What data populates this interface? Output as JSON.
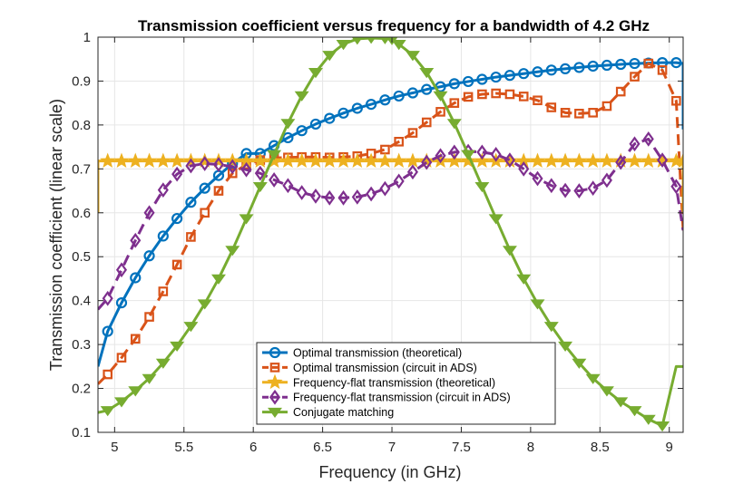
{
  "chart_data": {
    "type": "line",
    "title": "Transmission coefficient versus frequency for a bandwidth of 4.2 GHz",
    "xlabel": "Frequency (in GHz)",
    "ylabel": "Transmission coefficient (linear scale)",
    "xlim": [
      4.88,
      9.1
    ],
    "ylim": [
      0.1,
      1.0
    ],
    "xticks": [
      "5",
      "5.5",
      "6",
      "6.5",
      "7",
      "7.5",
      "8",
      "8.5",
      "9"
    ],
    "xtick_values": [
      5,
      5.5,
      6,
      6.5,
      7,
      7.5,
      8,
      8.5,
      9
    ],
    "yticks": [
      "0.1",
      "0.2",
      "0.3",
      "0.4",
      "0.5",
      "0.6",
      "0.7",
      "0.8",
      "0.9",
      "1"
    ],
    "ytick_values": [
      0.1,
      0.2,
      0.3,
      0.4,
      0.5,
      0.6,
      0.7,
      0.8,
      0.9,
      1.0
    ],
    "grid": true,
    "legend_position": "bottom-center",
    "series": [
      {
        "name": "Optimal transmission (theoretical)",
        "color": "#0072BD",
        "dash": "solid",
        "marker": "circle",
        "x": [
          4.88,
          4.95,
          5.05,
          5.15,
          5.25,
          5.35,
          5.45,
          5.55,
          5.65,
          5.75,
          5.85,
          5.95,
          6.05,
          6.15,
          6.25,
          6.35,
          6.45,
          6.55,
          6.65,
          6.75,
          6.85,
          6.95,
          7.05,
          7.15,
          7.25,
          7.35,
          7.45,
          7.55,
          7.65,
          7.75,
          7.85,
          7.95,
          8.05,
          8.15,
          8.25,
          8.35,
          8.45,
          8.55,
          8.65,
          8.75,
          8.85,
          8.95,
          9.05,
          9.1,
          9.1
        ],
        "y": [
          0.25,
          0.33,
          0.395,
          0.452,
          0.502,
          0.547,
          0.587,
          0.624,
          0.656,
          0.685,
          0.712,
          0.735,
          0.735,
          0.753,
          0.771,
          0.787,
          0.802,
          0.815,
          0.827,
          0.838,
          0.847,
          0.857,
          0.866,
          0.873,
          0.881,
          0.887,
          0.894,
          0.899,
          0.904,
          0.909,
          0.913,
          0.917,
          0.921,
          0.925,
          0.928,
          0.931,
          0.934,
          0.936,
          0.938,
          0.94,
          0.941,
          0.942,
          0.942,
          0.94,
          0.79
        ]
      },
      {
        "name": "Optimal transmission (circuit in ADS)",
        "color": "#D95319",
        "dash": "dashed",
        "marker": "square",
        "x": [
          4.88,
          4.95,
          5.05,
          5.15,
          5.25,
          5.35,
          5.45,
          5.55,
          5.65,
          5.75,
          5.85,
          5.95,
          6.05,
          6.15,
          6.25,
          6.35,
          6.45,
          6.55,
          6.65,
          6.75,
          6.85,
          6.95,
          7.05,
          7.15,
          7.25,
          7.35,
          7.45,
          7.55,
          7.65,
          7.75,
          7.85,
          7.95,
          8.05,
          8.15,
          8.25,
          8.35,
          8.45,
          8.55,
          8.65,
          8.75,
          8.85,
          8.95,
          9.05,
          9.1
        ],
        "y": [
          0.21,
          0.232,
          0.27,
          0.313,
          0.363,
          0.421,
          0.482,
          0.545,
          0.6,
          0.65,
          0.69,
          0.71,
          0.72,
          0.725,
          0.726,
          0.727,
          0.727,
          0.726,
          0.727,
          0.729,
          0.735,
          0.744,
          0.762,
          0.782,
          0.806,
          0.83,
          0.85,
          0.864,
          0.87,
          0.872,
          0.87,
          0.865,
          0.856,
          0.84,
          0.828,
          0.826,
          0.828,
          0.843,
          0.876,
          0.91,
          0.94,
          0.925,
          0.855,
          0.56
        ]
      },
      {
        "name": "Frequency-flat transmission (theoretical)",
        "color": "#EDB120",
        "dash": "solid",
        "marker": "star",
        "x": [
          4.88,
          4.88,
          4.95,
          5.05,
          5.15,
          5.25,
          5.35,
          5.45,
          5.55,
          5.65,
          5.75,
          5.85,
          5.95,
          6.05,
          6.15,
          6.25,
          6.35,
          6.45,
          6.55,
          6.65,
          6.75,
          6.85,
          6.95,
          7.05,
          7.15,
          7.25,
          7.35,
          7.45,
          7.55,
          7.65,
          7.75,
          7.85,
          7.95,
          8.05,
          8.15,
          8.25,
          8.35,
          8.45,
          8.55,
          8.65,
          8.75,
          8.85,
          8.95,
          9.05,
          9.1,
          9.1
        ],
        "y": [
          0.6,
          0.718,
          0.718,
          0.718,
          0.718,
          0.718,
          0.718,
          0.718,
          0.718,
          0.718,
          0.718,
          0.718,
          0.718,
          0.718,
          0.718,
          0.718,
          0.718,
          0.718,
          0.718,
          0.718,
          0.718,
          0.718,
          0.718,
          0.718,
          0.718,
          0.718,
          0.718,
          0.718,
          0.718,
          0.718,
          0.718,
          0.718,
          0.718,
          0.718,
          0.718,
          0.718,
          0.718,
          0.718,
          0.718,
          0.718,
          0.718,
          0.718,
          0.718,
          0.718,
          0.718,
          0.6
        ]
      },
      {
        "name": "Frequency-flat transmission (circuit in ADS)",
        "color": "#7E2F8E",
        "dash": "dashed",
        "marker": "diamond",
        "x": [
          4.88,
          4.95,
          5.05,
          5.15,
          5.25,
          5.35,
          5.45,
          5.55,
          5.65,
          5.75,
          5.85,
          5.95,
          6.05,
          6.15,
          6.25,
          6.35,
          6.45,
          6.55,
          6.65,
          6.75,
          6.85,
          6.95,
          7.05,
          7.15,
          7.25,
          7.35,
          7.45,
          7.55,
          7.65,
          7.75,
          7.85,
          7.95,
          8.05,
          8.15,
          8.25,
          8.35,
          8.45,
          8.55,
          8.65,
          8.75,
          8.85,
          8.95,
          9.05,
          9.1
        ],
        "y": [
          0.38,
          0.405,
          0.47,
          0.537,
          0.6,
          0.652,
          0.688,
          0.707,
          0.712,
          0.71,
          0.705,
          0.698,
          0.69,
          0.675,
          0.662,
          0.646,
          0.638,
          0.634,
          0.634,
          0.636,
          0.643,
          0.655,
          0.672,
          0.693,
          0.715,
          0.73,
          0.738,
          0.74,
          0.738,
          0.733,
          0.72,
          0.7,
          0.678,
          0.662,
          0.651,
          0.65,
          0.656,
          0.674,
          0.715,
          0.757,
          0.768,
          0.72,
          0.66,
          0.56
        ]
      },
      {
        "name": "Conjugate matching",
        "color": "#77AC30",
        "dash": "solid",
        "marker": "triangle-down",
        "x": [
          4.88,
          4.95,
          5.05,
          5.15,
          5.25,
          5.35,
          5.45,
          5.55,
          5.65,
          5.75,
          5.85,
          5.95,
          6.05,
          6.15,
          6.25,
          6.35,
          6.45,
          6.55,
          6.65,
          6.75,
          6.85,
          6.95,
          7.0,
          7.05,
          7.15,
          7.25,
          7.35,
          7.45,
          7.55,
          7.65,
          7.75,
          7.85,
          7.95,
          8.05,
          8.15,
          8.25,
          8.35,
          8.45,
          8.55,
          8.65,
          8.75,
          8.85,
          8.95,
          9.05,
          9.1
        ],
        "y": [
          0.145,
          0.15,
          0.17,
          0.195,
          0.223,
          0.258,
          0.297,
          0.342,
          0.393,
          0.45,
          0.515,
          0.587,
          0.66,
          0.733,
          0.804,
          0.867,
          0.92,
          0.959,
          0.984,
          0.996,
          0.998,
          0.997,
          0.995,
          0.984,
          0.959,
          0.92,
          0.867,
          0.804,
          0.733,
          0.66,
          0.587,
          0.515,
          0.45,
          0.393,
          0.342,
          0.297,
          0.258,
          0.223,
          0.195,
          0.17,
          0.15,
          0.13,
          0.115,
          0.25,
          0.25
        ]
      }
    ]
  }
}
